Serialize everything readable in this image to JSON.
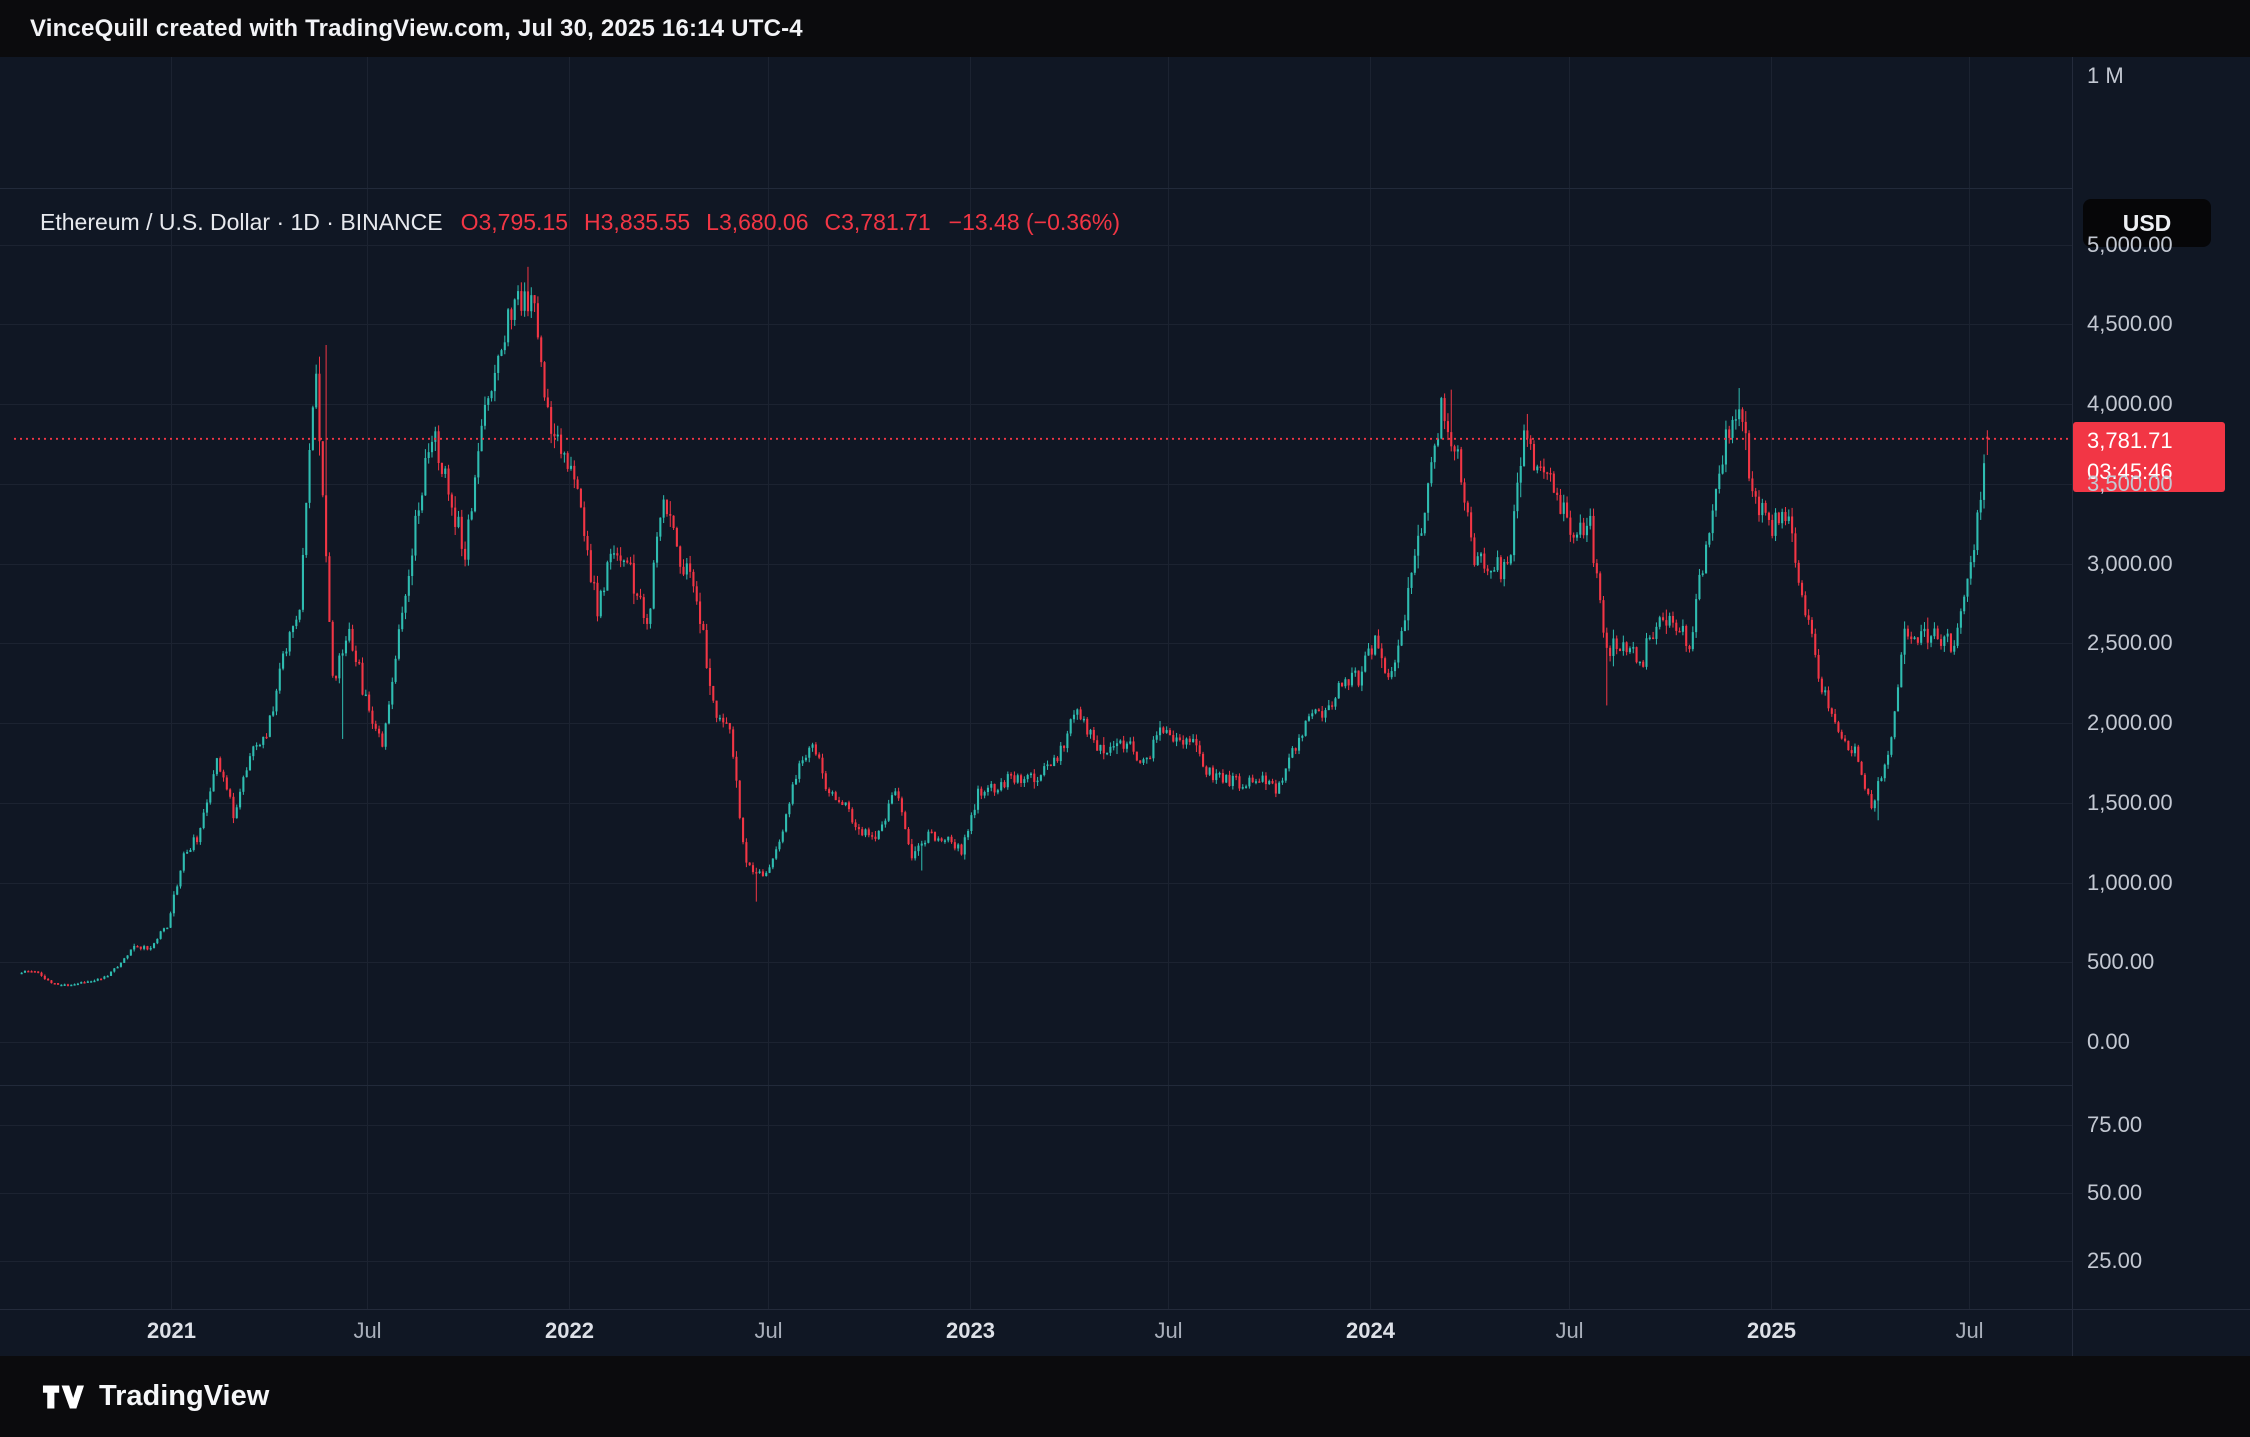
{
  "topbar": {
    "attribution": "VinceQuill created with TradingView.com, Jul 30, 2025 16:14 UTC-4"
  },
  "legend": {
    "title": "Ethereum / U.S. Dollar · 1D · BINANCE",
    "ohlc": [
      {
        "label": "O",
        "value": "3,795.15"
      },
      {
        "label": "H",
        "value": "3,835.55"
      },
      {
        "label": "L",
        "value": "3,680.06"
      },
      {
        "label": "C",
        "value": "3,781.71"
      }
    ],
    "change": "−13.48 (−0.36%)"
  },
  "price_axis": {
    "currency_button": "USD",
    "volume_scale_label": "1 M",
    "price_label": "3,781.71",
    "countdown": "03:45:46"
  },
  "footer": {
    "brand": "TradingView"
  },
  "chart_data": {
    "type": "candlestick",
    "title": "Ethereum / U.S. Dollar, 1D, BINANCE",
    "x_axis": {
      "start": "Aug 2020",
      "end": "Jul 30, 2025",
      "total_months": 59.5,
      "ticks": [
        {
          "label": "2021",
          "m": 4.55,
          "major": true
        },
        {
          "label": "Jul",
          "m": 10.5
        },
        {
          "label": "2022",
          "m": 16.6,
          "major": true
        },
        {
          "label": "Jul",
          "m": 22.6
        },
        {
          "label": "2023",
          "m": 28.7,
          "major": true
        },
        {
          "label": "Jul",
          "m": 34.7
        },
        {
          "label": "2024",
          "m": 40.8,
          "major": true
        },
        {
          "label": "Jul",
          "m": 46.8
        },
        {
          "label": "2025",
          "m": 52.9,
          "major": true
        },
        {
          "label": "Jul",
          "m": 58.9
        }
      ]
    },
    "y_axis": {
      "min": 0,
      "visible_max": 5354,
      "tick_step": 500,
      "tick_max": 5000
    },
    "sub_pane": {
      "ticks": [
        75,
        50,
        25
      ]
    },
    "price_line_value": 3781.71,
    "last_candle": {
      "open": 3795.15,
      "high": 3835.55,
      "low": 3680.06,
      "close": 3781.71
    },
    "anchor_interval_days": 15,
    "price_anchors": [
      430,
      450,
      365,
      355,
      378,
      395,
      465,
      600,
      592,
      735,
      1170,
      1310,
      1800,
      1430,
      1790,
      1920,
      2430,
      2770,
      4250,
      2250,
      2600,
      2140,
      1880,
      2560,
      3270,
      3830,
      3450,
      3100,
      3860,
      4330,
      4640,
      4710,
      3950,
      3720,
      3330,
      2690,
      3120,
      2930,
      2590,
      3450,
      3030,
      2830,
      2090,
      1940,
      1100,
      1030,
      1230,
      1680,
      1890,
      1550,
      1470,
      1310,
      1300,
      1580,
      1180,
      1290,
      1270,
      1200,
      1550,
      1590,
      1670,
      1640,
      1700,
      1820,
      2100,
      1870,
      1820,
      1870,
      1740,
      1930,
      1930,
      1860,
      1680,
      1650,
      1620,
      1670,
      1560,
      1800,
      2050,
      2090,
      2240,
      2280,
      2510,
      2280,
      2780,
      3380,
      3950,
      3650,
      3050,
      3000,
      2950,
      3760,
      3560,
      3440,
      3170,
      3230,
      2450,
      2520,
      2350,
      2650,
      2620,
      2510,
      3100,
      3700,
      3980,
      3340,
      3250,
      3300,
      2700,
      2230,
      1900,
      1820,
      1480,
      1790,
      2550,
      2530,
      2540,
      2480,
      2950,
      3782
    ],
    "spikes": [
      {
        "idx": 92,
        "high": 4370
      },
      {
        "idx": 97,
        "low": 1900
      },
      {
        "idx": 153,
        "high": 4860
      },
      {
        "idx": 222,
        "low": 880
      },
      {
        "idx": 272,
        "low": 1075
      },
      {
        "idx": 432,
        "high": 4090
      },
      {
        "idx": 479,
        "low": 2110
      },
      {
        "idx": 519,
        "high": 4100
      },
      {
        "idx": 561,
        "low": 1390
      }
    ],
    "colors": {
      "up": "#2fbdb1",
      "down": "#f23645",
      "grid": "#1c2331",
      "separator": "#222a3a",
      "price_line": "#f23645",
      "badge": "#f23645",
      "background": "#101724"
    }
  }
}
